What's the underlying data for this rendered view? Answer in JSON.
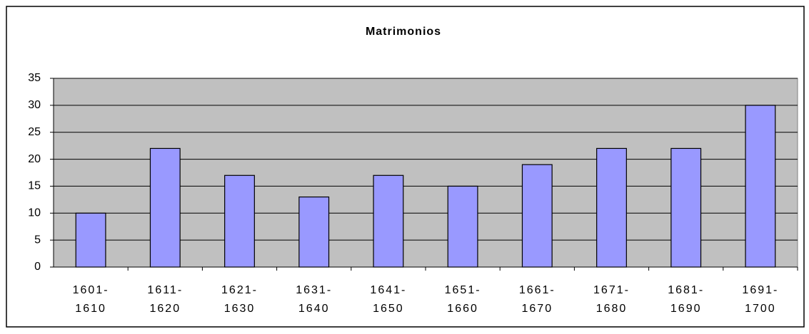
{
  "chart_data": {
    "type": "bar",
    "title": "Matrimonios",
    "categories": [
      "1601-1610",
      "1611-1620",
      "1621-1630",
      "1631-1640",
      "1641-1650",
      "1651-1660",
      "1661-1670",
      "1671-1680",
      "1681-1690",
      "1691-1700"
    ],
    "values": [
      10,
      22,
      17,
      13,
      17,
      15,
      19,
      22,
      22,
      30
    ],
    "color": "#9999ff",
    "ylim": [
      0,
      35
    ],
    "yticks": [
      0,
      5,
      10,
      15,
      20,
      25,
      30,
      35
    ],
    "grid": true
  }
}
